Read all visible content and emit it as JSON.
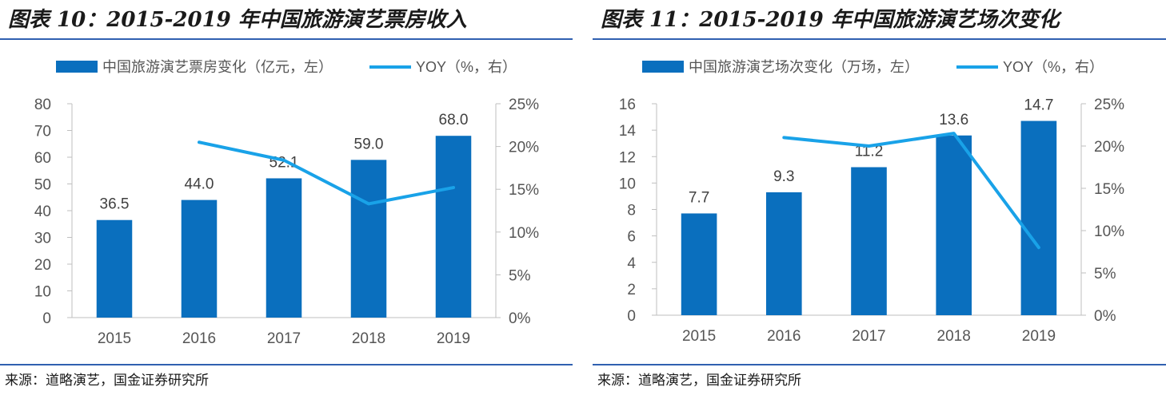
{
  "panels": [
    {
      "title": "图表 10：2015-2019 年中国旅游演艺票房收入",
      "source": "来源：道略演艺，国金证券研究所"
    },
    {
      "title": "图表 11：2015-2019 年中国旅游演艺场次变化",
      "source": "来源：道略演艺，国金证券研究所"
    }
  ],
  "chart_data": [
    {
      "type": "bar",
      "categories": [
        "2015",
        "2016",
        "2017",
        "2018",
        "2019"
      ],
      "series": [
        {
          "name": "中国旅游演艺票房变化（亿元，左）",
          "kind": "bar",
          "axis": "left",
          "values": [
            36.5,
            44.0,
            52.1,
            59.0,
            68.0
          ],
          "labels": [
            "36.5",
            "44.0",
            "52.1",
            "59.0",
            "68.0"
          ]
        },
        {
          "name": "YOY（%，右）",
          "kind": "line",
          "axis": "right",
          "values": [
            null,
            20.5,
            18.4,
            13.3,
            15.2
          ]
        }
      ],
      "ylim": [
        0,
        80
      ],
      "yticks": [
        "0",
        "10",
        "20",
        "30",
        "40",
        "50",
        "60",
        "70",
        "80"
      ],
      "y2lim": [
        0,
        25
      ],
      "y2ticks": [
        "0%",
        "5%",
        "10%",
        "15%",
        "20%",
        "25%"
      ],
      "legend": "top",
      "grid": false,
      "colors": {
        "bar": "#0a6fbe",
        "line": "#19a2e8"
      }
    },
    {
      "type": "bar",
      "categories": [
        "2015",
        "2016",
        "2017",
        "2018",
        "2019"
      ],
      "series": [
        {
          "name": "中国旅游演艺场次变化（万场，左）",
          "kind": "bar",
          "axis": "left",
          "values": [
            7.7,
            9.3,
            11.2,
            13.6,
            14.7
          ],
          "labels": [
            "7.7",
            "9.3",
            "11.2",
            "13.6",
            "14.7"
          ]
        },
        {
          "name": "YOY（%，右）",
          "kind": "line",
          "axis": "right",
          "values": [
            null,
            21.0,
            20.0,
            21.5,
            8.0
          ]
        }
      ],
      "ylim": [
        0,
        16
      ],
      "yticks": [
        "0",
        "2",
        "4",
        "6",
        "8",
        "10",
        "12",
        "14",
        "16"
      ],
      "y2lim": [
        0,
        25
      ],
      "y2ticks": [
        "0%",
        "5%",
        "10%",
        "15%",
        "20%",
        "25%"
      ],
      "legend": "top",
      "grid": false,
      "colors": {
        "bar": "#0a6fbe",
        "line": "#19a2e8"
      }
    }
  ]
}
